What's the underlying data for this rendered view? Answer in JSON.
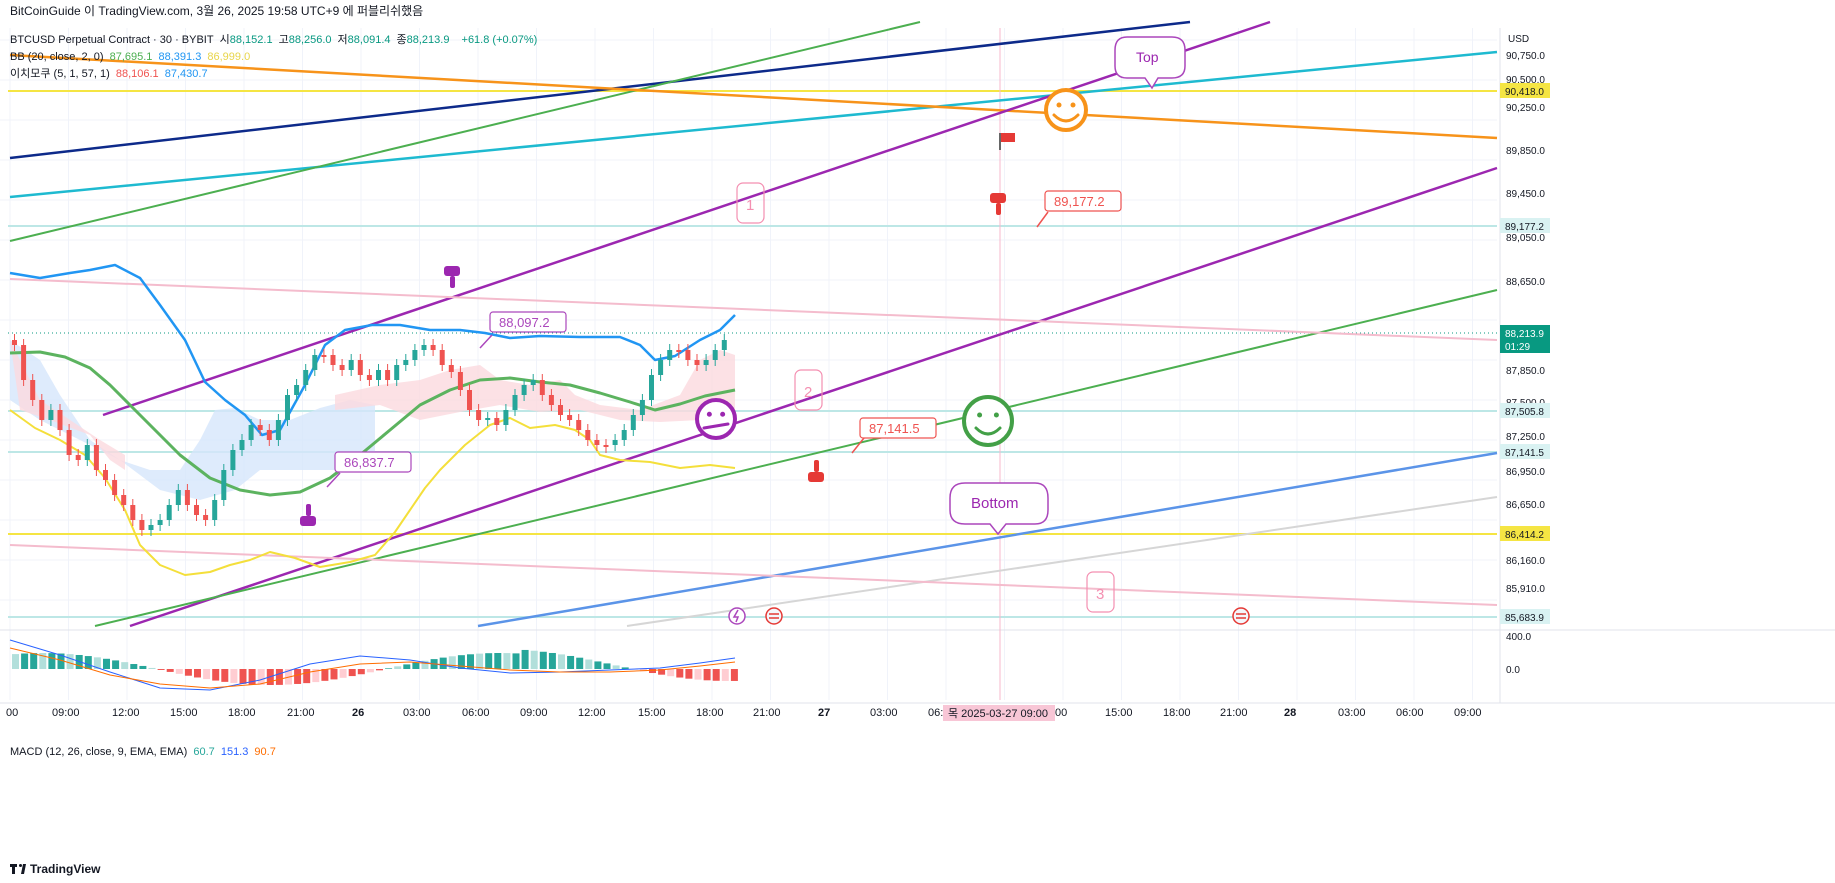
{
  "header": {
    "attribution": "BitCoinGuide 이 TradingView.com, 3월 26, 2025 19:58 UTC+9 에 퍼블리쉬했음",
    "symbol_line": "BTCUSD Perpetual Contract · 30 · BYBIT",
    "ohlc": [
      {
        "label": "시",
        "value": "88,152.1"
      },
      {
        "label": "고",
        "value": "88,256.0"
      },
      {
        "label": "저",
        "value": "88,091.4"
      },
      {
        "label": "종",
        "value": "88,213.9"
      }
    ],
    "change": "+61.8 (+0.07%)",
    "bb_label": "BB (20, close, 2, 0)",
    "bb_values": [
      "87,695.1",
      "88,391.3",
      "86,999.0"
    ],
    "ichimoku_label": "이치모쿠 (5, 1, 57, 1)",
    "ichimoku_values": [
      "88,106.1",
      "87,430.7"
    ]
  },
  "price_axis": {
    "currency": "USD",
    "ticks": [
      "90,750.0",
      "90,500.0",
      "90,250.0",
      "89,850.0",
      "89,450.0",
      "89,050.0",
      "88,650.0",
      "87,850.0",
      "87,500.0",
      "87,250.0",
      "86,950.0",
      "86,650.0",
      "86,160.0",
      "85,910.0"
    ],
    "highlight_labels": [
      {
        "text": "90,418.0",
        "color": "#f5e543",
        "text_color": "#131722"
      },
      {
        "text": "89,177.2",
        "color": "#d9f2f2",
        "text_color": "#131722"
      },
      {
        "text": "88,213.9",
        "color": "#089981",
        "text_color": "#ffffff"
      },
      {
        "text": "01:29",
        "color": "#089981",
        "text_color": "#ffffff"
      },
      {
        "text": "87,505.8",
        "color": "#d9f2f2",
        "text_color": "#131722"
      },
      {
        "text": "87,141.5",
        "color": "#d9f2f2",
        "text_color": "#131722"
      },
      {
        "text": "86,414.2",
        "color": "#f5e543",
        "text_color": "#131722"
      },
      {
        "text": "85,683.9",
        "color": "#d9f2f2",
        "text_color": "#131722"
      }
    ]
  },
  "macd": {
    "label": "MACD (12, 26, close, 9, EMA, EMA)",
    "values": [
      "60.7",
      "151.3",
      "90.7"
    ],
    "value_colors": [
      "#26a69a",
      "#2962ff",
      "#ff6d00"
    ],
    "ticks": [
      "400.0",
      "0.0"
    ]
  },
  "time_axis": {
    "ticks": [
      "00",
      "09:00",
      "12:00",
      "15:00",
      "18:00",
      "21:00",
      "26",
      "03:00",
      "06:00",
      "09:00",
      "12:00",
      "15:00",
      "18:00",
      "21:00",
      "27",
      "03:00",
      "06:0",
      "00",
      "15:00",
      "18:00",
      "21:00",
      "28",
      "03:00",
      "06:00",
      "09:00"
    ],
    "crosshair_label": "목 2025-03-27  09:00"
  },
  "annotations": {
    "labels": [
      "88,097.2",
      "86,837.7",
      "89,177.2",
      "87,141.5"
    ],
    "bubbles": [
      "Top",
      "Bottom"
    ],
    "wave_numbers": [
      "1",
      "2",
      "3"
    ]
  },
  "footer": {
    "brand": "TradingView"
  },
  "colors": {
    "up": "#26a69a",
    "down": "#ef5350",
    "bb_basis": "#2196f3",
    "bb_mid": "#4caf50",
    "ichimoku": "#ffeb3b",
    "purple": "#9c27b0",
    "green": "#43a047",
    "navy": "#0d2a8a",
    "cyan": "#1ebad0",
    "orange": "#f7931a",
    "pink": "#f7b9cd",
    "grid": "#f0f3fa",
    "crosshair": "#f7b9cd"
  },
  "chart_data": {
    "type": "candlestick",
    "title": "BTCUSD Perpetual Contract · 30 · BYBIT",
    "ylabel": "USD",
    "ylim": [
      85550,
      90900
    ],
    "last_close": 88213.9,
    "horizontal_levels": [
      90418.0,
      89177.2,
      87505.8,
      87141.5,
      86414.2,
      85683.9
    ],
    "annotated_prices": [
      88097.2,
      86837.7,
      89177.2,
      87141.5
    ]
  }
}
